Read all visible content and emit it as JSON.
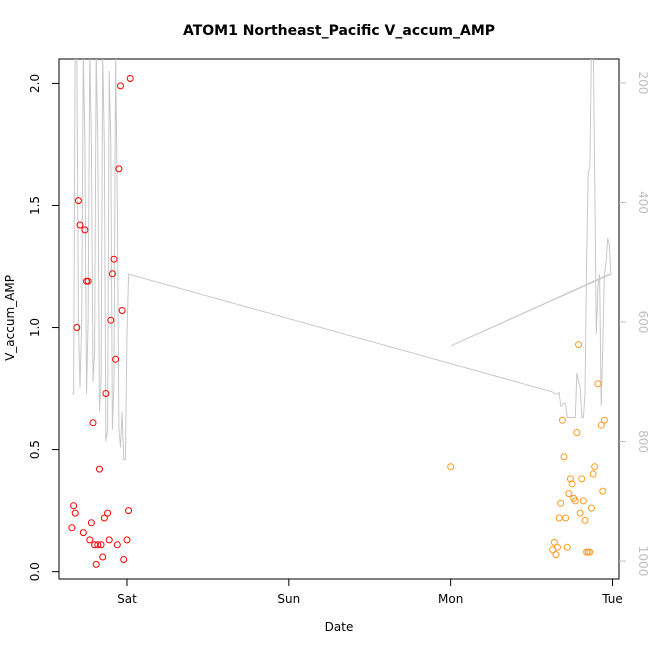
{
  "chart_data": {
    "type": "scatter",
    "title": "ATOM1 Northeast_Pacific V_accum_AMP",
    "xlabel": "Date",
    "ylabel": "V_accum_AMP",
    "x_ticks": [
      {
        "day": 1.0,
        "label": "Sat"
      },
      {
        "day": 2.0,
        "label": "Sun"
      },
      {
        "day": 3.0,
        "label": "Mon"
      },
      {
        "day": 4.0,
        "label": "Tue"
      }
    ],
    "xlim": [
      0.58,
      4.04
    ],
    "ylim": [
      -0.03,
      2.1
    ],
    "y_ticks": [
      0.0,
      0.5,
      1.0,
      1.5,
      2.0
    ],
    "y2lim": [
      1030,
      160
    ],
    "y2_ticks": [
      200,
      400,
      600,
      800,
      1000
    ],
    "grid": false,
    "legend": "none",
    "colors": {
      "series1": "#ff0000",
      "series2": "#ff9a1f",
      "depth_line": "#c8c8c8"
    },
    "series": [
      {
        "color": "#ff0000",
        "marker": "open-circle",
        "points": [
          [
            0.66,
            0.18
          ],
          [
            0.67,
            0.27
          ],
          [
            0.68,
            0.24
          ],
          [
            0.69,
            1.0
          ],
          [
            0.7,
            1.52
          ],
          [
            0.71,
            1.42
          ],
          [
            0.73,
            0.16
          ],
          [
            0.74,
            1.4
          ],
          [
            0.75,
            1.19
          ],
          [
            0.76,
            1.19
          ],
          [
            0.77,
            0.13
          ],
          [
            0.78,
            0.2
          ],
          [
            0.79,
            0.61
          ],
          [
            0.8,
            0.11
          ],
          [
            0.81,
            0.03
          ],
          [
            0.82,
            0.11
          ],
          [
            0.83,
            0.42
          ],
          [
            0.84,
            0.11
          ],
          [
            0.85,
            0.06
          ],
          [
            0.86,
            0.22
          ],
          [
            0.87,
            0.73
          ],
          [
            0.88,
            0.24
          ],
          [
            0.89,
            0.13
          ],
          [
            0.9,
            1.03
          ],
          [
            0.91,
            1.22
          ],
          [
            0.92,
            1.28
          ],
          [
            0.93,
            0.87
          ],
          [
            0.94,
            0.11
          ],
          [
            0.95,
            1.65
          ],
          [
            0.96,
            1.99
          ],
          [
            0.97,
            1.07
          ],
          [
            0.98,
            0.05
          ],
          [
            1.0,
            0.13
          ],
          [
            1.01,
            0.25
          ],
          [
            1.02,
            2.02
          ]
        ]
      },
      {
        "color": "#ff9a1f",
        "marker": "open-circle",
        "points": [
          [
            3.0,
            0.43
          ],
          [
            3.63,
            0.09
          ],
          [
            3.64,
            0.12
          ],
          [
            3.65,
            0.07
          ],
          [
            3.66,
            0.1
          ],
          [
            3.67,
            0.22
          ],
          [
            3.68,
            0.28
          ],
          [
            3.69,
            0.62
          ],
          [
            3.7,
            0.47
          ],
          [
            3.71,
            0.22
          ],
          [
            3.72,
            0.1
          ],
          [
            3.73,
            0.32
          ],
          [
            3.74,
            0.38
          ],
          [
            3.75,
            0.36
          ],
          [
            3.76,
            0.3
          ],
          [
            3.77,
            0.29
          ],
          [
            3.78,
            0.57
          ],
          [
            3.79,
            0.93
          ],
          [
            3.8,
            0.24
          ],
          [
            3.81,
            0.38
          ],
          [
            3.82,
            0.29
          ],
          [
            3.83,
            0.21
          ],
          [
            3.84,
            0.08
          ],
          [
            3.85,
            0.08
          ],
          [
            3.86,
            0.08
          ],
          [
            3.87,
            0.26
          ],
          [
            3.88,
            0.4
          ],
          [
            3.89,
            0.43
          ],
          [
            3.91,
            0.77
          ],
          [
            3.93,
            0.6
          ],
          [
            3.94,
            0.33
          ],
          [
            3.95,
            0.62
          ]
        ]
      }
    ],
    "depth_line": {
      "color": "#c8c8c8",
      "axis": "right",
      "points": [
        [
          0.66,
          720
        ],
        [
          0.67,
          720
        ],
        [
          0.68,
          130
        ],
        [
          0.69,
          130
        ],
        [
          0.7,
          600
        ],
        [
          0.71,
          710
        ],
        [
          0.72,
          600
        ],
        [
          0.73,
          150
        ],
        [
          0.74,
          300
        ],
        [
          0.75,
          720
        ],
        [
          0.76,
          600
        ],
        [
          0.77,
          150
        ],
        [
          0.78,
          300
        ],
        [
          0.79,
          700
        ],
        [
          0.8,
          650
        ],
        [
          0.81,
          150
        ],
        [
          0.82,
          300
        ],
        [
          0.83,
          750
        ],
        [
          0.84,
          700
        ],
        [
          0.85,
          150
        ],
        [
          0.86,
          300
        ],
        [
          0.87,
          800
        ],
        [
          0.88,
          780
        ],
        [
          0.89,
          180
        ],
        [
          0.9,
          300
        ],
        [
          0.91,
          780
        ],
        [
          0.92,
          700
        ],
        [
          0.93,
          150
        ],
        [
          0.94,
          400
        ],
        [
          0.95,
          780
        ],
        [
          0.96,
          810
        ],
        [
          0.97,
          750
        ],
        [
          0.98,
          830
        ],
        [
          0.99,
          830
        ],
        [
          1.0,
          620
        ],
        [
          1.01,
          520
        ],
        [
          3.63,
          717
        ],
        [
          3.64,
          720
        ],
        [
          3.65,
          720
        ],
        [
          3.66,
          720
        ],
        [
          3.67,
          718
        ],
        [
          3.68,
          740
        ],
        [
          3.69,
          740
        ],
        [
          3.7,
          735
        ],
        [
          3.71,
          737
        ],
        [
          3.72,
          760
        ],
        [
          3.73,
          760
        ],
        [
          3.74,
          760
        ],
        [
          3.75,
          760
        ],
        [
          3.76,
          760
        ],
        [
          3.77,
          760
        ],
        [
          3.78,
          685
        ],
        [
          3.79,
          700
        ],
        [
          3.8,
          710
        ],
        [
          3.81,
          760
        ],
        [
          3.82,
          760
        ],
        [
          3.83,
          720
        ],
        [
          3.84,
          500
        ],
        [
          3.85,
          350
        ],
        [
          3.86,
          340
        ],
        [
          3.87,
          130
        ],
        [
          3.88,
          100
        ],
        [
          3.89,
          360
        ],
        [
          3.9,
          620
        ],
        [
          3.91,
          540
        ],
        [
          3.92,
          520
        ],
        [
          3.93,
          740
        ],
        [
          3.94,
          640
        ],
        [
          3.95,
          520
        ],
        [
          3.96,
          500
        ],
        [
          3.97,
          460
        ],
        [
          3.98,
          470
        ],
        [
          3.99,
          520
        ],
        [
          3.0,
          640
        ],
        [
          3.98,
          520
        ]
      ]
    }
  }
}
